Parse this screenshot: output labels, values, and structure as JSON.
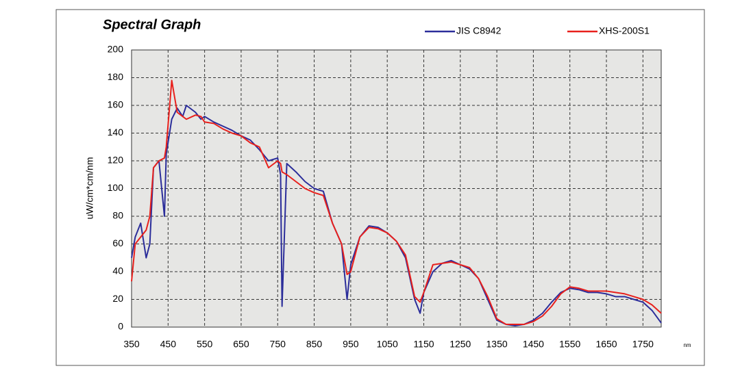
{
  "chart_data": {
    "type": "line",
    "title": "Spectral Graph",
    "y_label": "uW/cm*cm/nm",
    "x_label": "nm",
    "x": [
      350,
      360,
      375,
      390,
      400,
      410,
      425,
      440,
      445,
      460,
      475,
      490,
      500,
      525,
      540,
      550,
      575,
      600,
      625,
      650,
      675,
      700,
      725,
      750,
      758,
      762,
      775,
      800,
      825,
      850,
      875,
      900,
      925,
      940,
      950,
      975,
      1000,
      1025,
      1050,
      1075,
      1100,
      1125,
      1140,
      1150,
      1175,
      1200,
      1225,
      1250,
      1275,
      1300,
      1325,
      1350,
      1375,
      1400,
      1425,
      1450,
      1475,
      1500,
      1525,
      1550,
      1575,
      1600,
      1625,
      1650,
      1675,
      1700,
      1725,
      1750,
      1775,
      1800
    ],
    "series": [
      {
        "name": "JIS C8942",
        "color": "#2b2d9a",
        "values": [
          50,
          65,
          75,
          50,
          60,
          115,
          120,
          80,
          125,
          150,
          158,
          152,
          160,
          155,
          150,
          152,
          148,
          145,
          142,
          138,
          135,
          128,
          120,
          122,
          110,
          15,
          118,
          112,
          105,
          100,
          98,
          75,
          60,
          20,
          45,
          65,
          73,
          72,
          68,
          62,
          50,
          20,
          10,
          25,
          40,
          46,
          48,
          45,
          42,
          35,
          20,
          5,
          2,
          1,
          2,
          5,
          10,
          18,
          25,
          28,
          27,
          25,
          25,
          24,
          22,
          22,
          20,
          18,
          12,
          3
        ]
      },
      {
        "name": "XHS-200S1",
        "color": "#e8201c",
        "values": [
          33,
          60,
          65,
          70,
          80,
          115,
          120,
          122,
          130,
          178,
          155,
          152,
          150,
          153,
          152,
          148,
          147,
          143,
          140,
          138,
          133,
          130,
          115,
          120,
          118,
          112,
          110,
          105,
          100,
          97,
          95,
          75,
          60,
          38,
          40,
          65,
          72,
          71,
          68,
          62,
          52,
          22,
          18,
          25,
          45,
          46,
          47,
          45,
          43,
          35,
          22,
          6,
          2,
          2,
          2,
          4,
          8,
          15,
          24,
          29,
          28,
          26,
          26,
          26,
          25,
          24,
          22,
          20,
          16,
          10
        ]
      }
    ],
    "xlim": [
      350,
      1800
    ],
    "xticks": [
      350,
      450,
      550,
      650,
      750,
      850,
      950,
      1050,
      1150,
      1250,
      1350,
      1450,
      1550,
      1650,
      1750
    ],
    "ylim": [
      0,
      200
    ],
    "yticks": [
      0,
      20,
      40,
      60,
      80,
      100,
      120,
      140,
      160,
      180,
      200
    ],
    "grid": true,
    "legend": "top-right"
  }
}
